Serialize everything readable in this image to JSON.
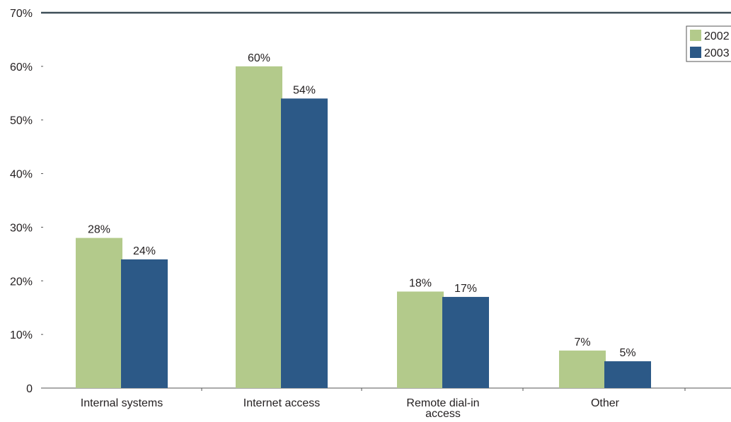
{
  "chart_data": {
    "type": "bar",
    "categories": [
      [
        "Internal systems"
      ],
      [
        "Internet access"
      ],
      [
        "Remote dial-in",
        "access"
      ],
      [
        "Other"
      ]
    ],
    "series": [
      {
        "name": "2002",
        "color": "#b3ca8b",
        "values": [
          28,
          60,
          18,
          7
        ],
        "labels": [
          "28%",
          "60%",
          "18%",
          "7%"
        ]
      },
      {
        "name": "2003",
        "color": "#2c5987",
        "values": [
          24,
          54,
          17,
          5
        ],
        "labels": [
          "24%",
          "54%",
          "17%",
          "5%"
        ]
      }
    ],
    "y_ticks": [
      {
        "value": 0,
        "label": "0"
      },
      {
        "value": 10,
        "label": "10%"
      },
      {
        "value": 20,
        "label": "20%"
      },
      {
        "value": 30,
        "label": "30%"
      },
      {
        "value": 40,
        "label": "40%"
      },
      {
        "value": 50,
        "label": "50%"
      },
      {
        "value": 60,
        "label": "60%"
      },
      {
        "value": 70,
        "label": "70%"
      }
    ],
    "ylim": [
      0,
      70
    ],
    "grid": false,
    "legend_position": "top-right"
  }
}
